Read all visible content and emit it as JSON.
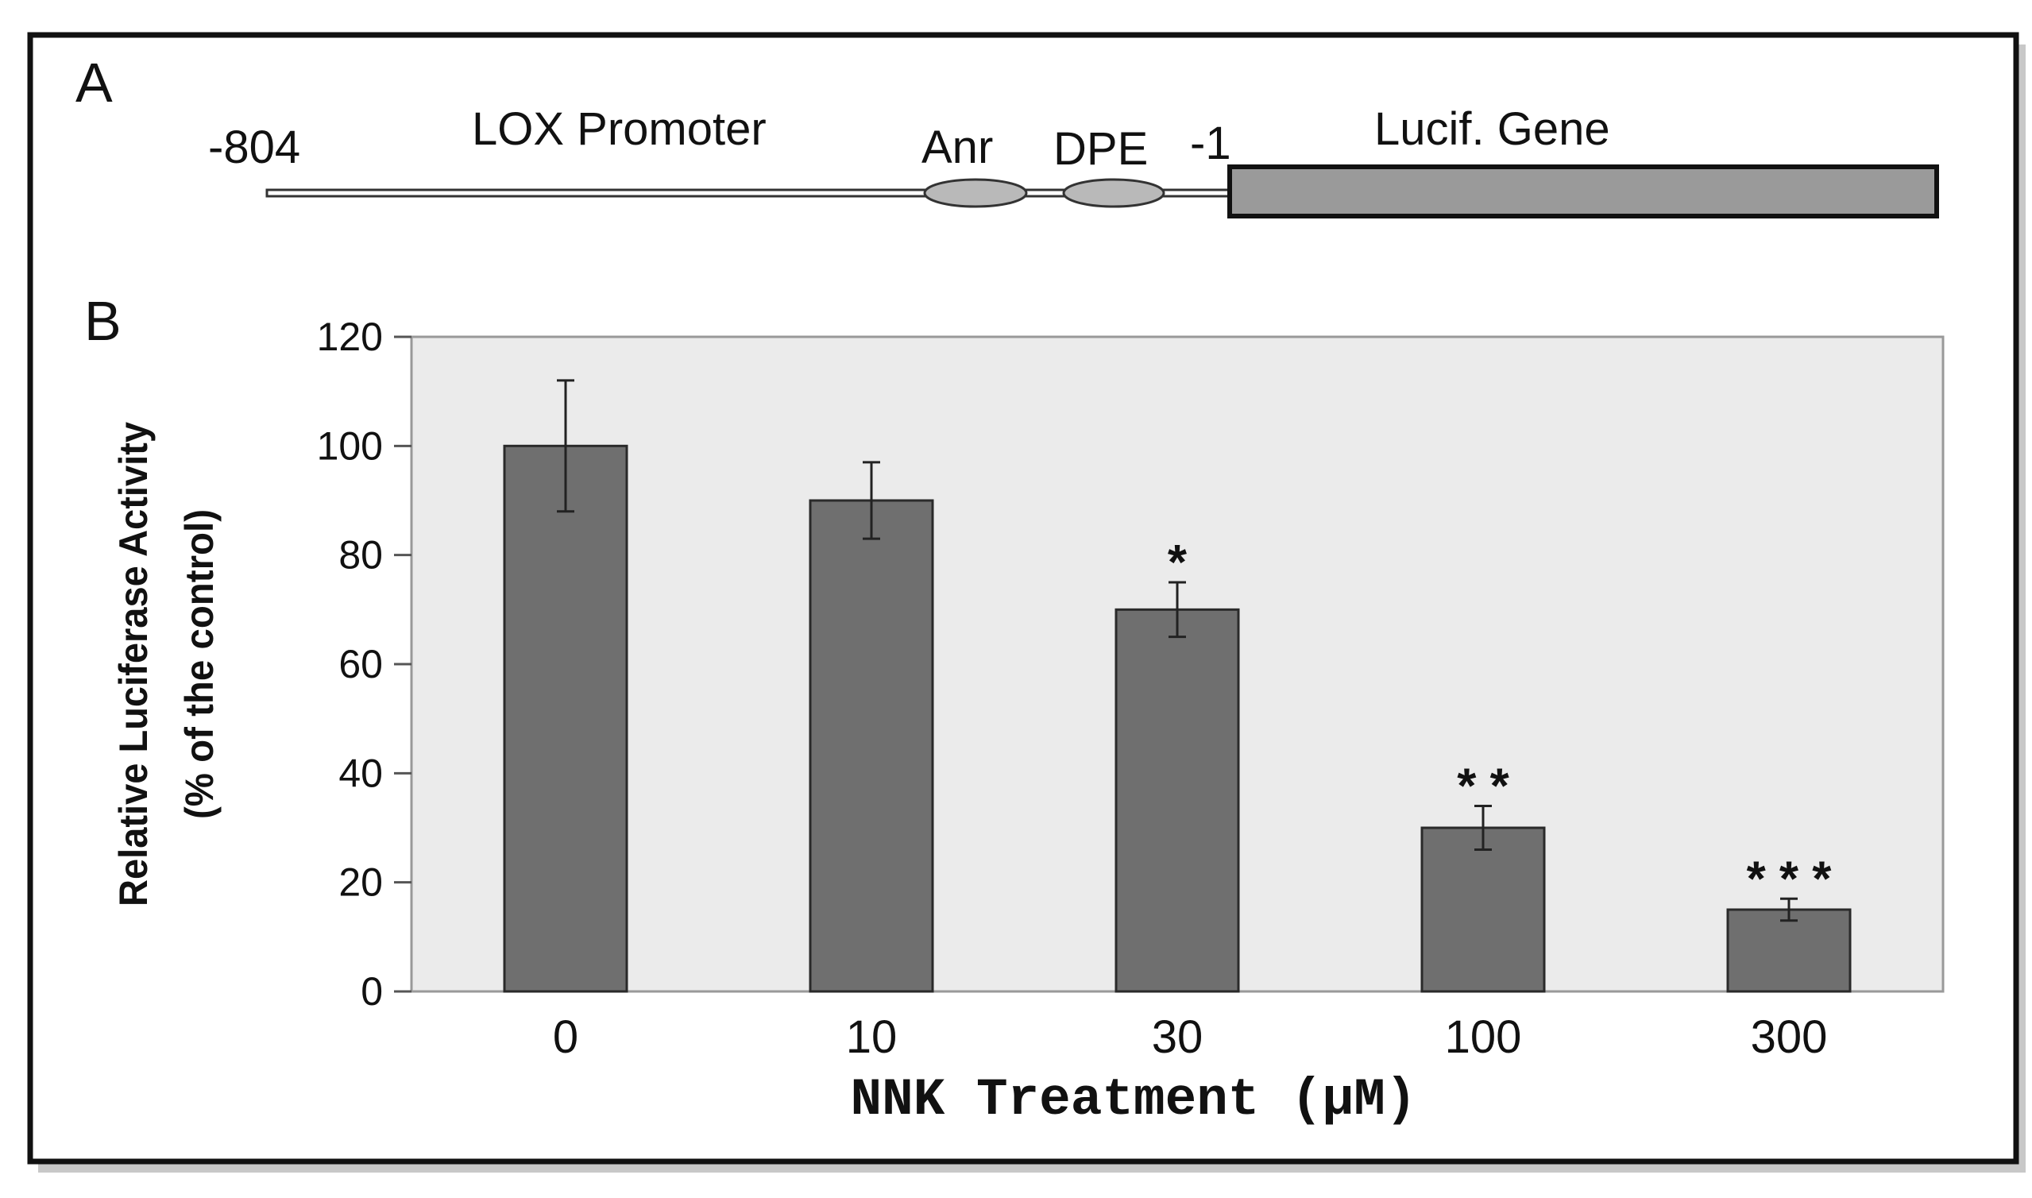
{
  "panel_a": {
    "label": "A",
    "start_position": "-804",
    "promoter_label": "LOX Promoter",
    "element_1": "Anr",
    "element_2": "DPE",
    "element_2_pos": "-1",
    "gene_label": "Lucif. Gene"
  },
  "panel_b": {
    "label": "B"
  },
  "colors": {
    "bar": "#6f6f6f",
    "plot_bg": "#ebebeb",
    "ellipse": "#b9b9b9",
    "gene_box": "#9a9a9a",
    "frame": "#111111"
  },
  "chart_data": {
    "type": "bar",
    "title": "",
    "xlabel": "NNK Treatment (μM)",
    "ylabel": "Relative Luciferase Activity",
    "ylabel_sub": "(% of the control)",
    "categories": [
      "0",
      "10",
      "30",
      "100",
      "300"
    ],
    "values": [
      100,
      90,
      70,
      30,
      15
    ],
    "errors": [
      12,
      7,
      5,
      4,
      2
    ],
    "significance": [
      "",
      "",
      "*",
      "* *",
      "* * *"
    ],
    "ylim": [
      0,
      120
    ],
    "yticks": [
      0,
      20,
      40,
      60,
      80,
      100,
      120
    ],
    "grid": false,
    "legend": "none"
  }
}
